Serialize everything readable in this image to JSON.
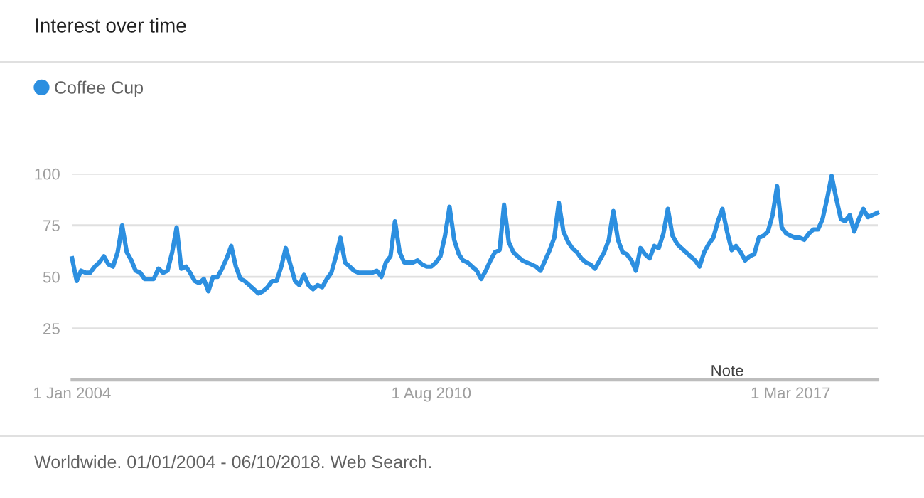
{
  "chart_data": {
    "type": "line",
    "title": "Interest over time",
    "x": [
      "2004-01",
      "2004-02",
      "2004-03",
      "2004-04",
      "2004-05",
      "2004-06",
      "2004-07",
      "2004-08",
      "2004-09",
      "2004-10",
      "2004-11",
      "2004-12",
      "2005-01",
      "2005-02",
      "2005-03",
      "2005-04",
      "2005-05",
      "2005-06",
      "2005-07",
      "2005-08",
      "2005-09",
      "2005-10",
      "2005-11",
      "2005-12",
      "2006-01",
      "2006-02",
      "2006-03",
      "2006-04",
      "2006-05",
      "2006-06",
      "2006-07",
      "2006-08",
      "2006-09",
      "2006-10",
      "2006-11",
      "2006-12",
      "2007-01",
      "2007-02",
      "2007-03",
      "2007-04",
      "2007-05",
      "2007-06",
      "2007-07",
      "2007-08",
      "2007-09",
      "2007-10",
      "2007-11",
      "2007-12",
      "2008-01",
      "2008-02",
      "2008-03",
      "2008-04",
      "2008-05",
      "2008-06",
      "2008-07",
      "2008-08",
      "2008-09",
      "2008-10",
      "2008-11",
      "2008-12",
      "2009-01",
      "2009-02",
      "2009-03",
      "2009-04",
      "2009-05",
      "2009-06",
      "2009-07",
      "2009-08",
      "2009-09",
      "2009-10",
      "2009-11",
      "2009-12",
      "2010-01",
      "2010-02",
      "2010-03",
      "2010-04",
      "2010-05",
      "2010-06",
      "2010-07",
      "2010-08",
      "2010-09",
      "2010-10",
      "2010-11",
      "2010-12",
      "2011-01",
      "2011-02",
      "2011-03",
      "2011-04",
      "2011-05",
      "2011-06",
      "2011-07",
      "2011-08",
      "2011-09",
      "2011-10",
      "2011-11",
      "2011-12",
      "2012-01",
      "2012-02",
      "2012-03",
      "2012-04",
      "2012-05",
      "2012-06",
      "2012-07",
      "2012-08",
      "2012-09",
      "2012-10",
      "2012-11",
      "2012-12",
      "2013-01",
      "2013-02",
      "2013-03",
      "2013-04",
      "2013-05",
      "2013-06",
      "2013-07",
      "2013-08",
      "2013-09",
      "2013-10",
      "2013-11",
      "2013-12",
      "2014-01",
      "2014-02",
      "2014-03",
      "2014-04",
      "2014-05",
      "2014-06",
      "2014-07",
      "2014-08",
      "2014-09",
      "2014-10",
      "2014-11",
      "2014-12",
      "2015-01",
      "2015-02",
      "2015-03",
      "2015-04",
      "2015-05",
      "2015-06",
      "2015-07",
      "2015-08",
      "2015-09",
      "2015-10",
      "2015-11",
      "2015-12",
      "2016-01",
      "2016-02",
      "2016-03",
      "2016-04",
      "2016-05",
      "2016-06",
      "2016-07",
      "2016-08",
      "2016-09",
      "2016-10",
      "2016-11",
      "2016-12",
      "2017-01",
      "2017-02",
      "2017-03",
      "2017-04",
      "2017-05",
      "2017-06",
      "2017-07",
      "2017-08",
      "2017-09",
      "2017-10",
      "2017-11",
      "2017-12",
      "2018-01",
      "2018-02",
      "2018-03",
      "2018-04",
      "2018-05",
      "2018-06",
      "2018-07",
      "2018-08",
      "2018-09",
      "2018-10"
    ],
    "series": [
      {
        "name": "Coffee Cup",
        "color": "#2c8fe0",
        "values": [
          59,
          48,
          53,
          52,
          52,
          55,
          57,
          60,
          56,
          55,
          62,
          75,
          62,
          58,
          53,
          52,
          49,
          49,
          49,
          54,
          52,
          53,
          62,
          74,
          54,
          55,
          52,
          48,
          47,
          49,
          43,
          50,
          50,
          54,
          59,
          65,
          55,
          49,
          48,
          46,
          44,
          42,
          43,
          45,
          48,
          48,
          55,
          64,
          56,
          48,
          46,
          51,
          46,
          44,
          46,
          45,
          49,
          52,
          60,
          69,
          57,
          55,
          53,
          52,
          52,
          52,
          52,
          53,
          50,
          57,
          60,
          77,
          62,
          57,
          57,
          57,
          58,
          56,
          55,
          55,
          57,
          60,
          70,
          84,
          68,
          61,
          58,
          57,
          55,
          53,
          49,
          53,
          58,
          62,
          63,
          85,
          67,
          62,
          60,
          58,
          57,
          56,
          55,
          53,
          58,
          63,
          69,
          86,
          72,
          67,
          64,
          62,
          59,
          57,
          56,
          54,
          58,
          62,
          68,
          82,
          68,
          62,
          61,
          58,
          53,
          64,
          61,
          59,
          65,
          64,
          71,
          83,
          70,
          66,
          64,
          62,
          60,
          58,
          55,
          62,
          66,
          69,
          77,
          83,
          72,
          63,
          65,
          62,
          58,
          60,
          61,
          69,
          70,
          72,
          80,
          94,
          74,
          71,
          70,
          69,
          69,
          68,
          71,
          73,
          73,
          78,
          88,
          99,
          88,
          78,
          77,
          80,
          72,
          78,
          83,
          79,
          80,
          81
        ]
      }
    ],
    "xlim": [
      "2004-01-01",
      "2018-10-06"
    ],
    "xticks": [
      {
        "value": "2004-01-01",
        "label": "1 Jan 2004"
      },
      {
        "value": "2010-08-01",
        "label": "1 Aug 2010"
      },
      {
        "value": "2017-03-01",
        "label": "1 Mar 2017"
      }
    ],
    "ylim": [
      0,
      100
    ],
    "yticks": [
      25,
      50,
      75,
      100
    ],
    "grid": "y",
    "legend": "top left",
    "annotations": [
      "Note",
      "Worldwide. 01/01/2004 - 06/10/2018. Web Search."
    ]
  }
}
